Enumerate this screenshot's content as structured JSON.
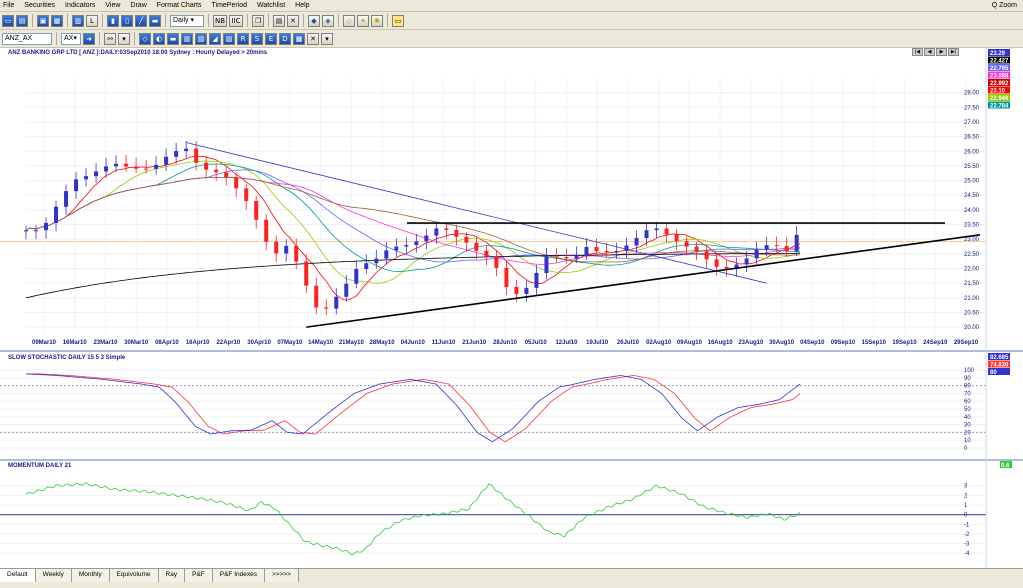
{
  "menu": {
    "items": [
      "File",
      "Securities",
      "Indicators",
      "View",
      "Draw",
      "Format Charts",
      "TimePeriod",
      "Watchlist",
      "Help"
    ],
    "zoom_label": "Q Zoom"
  },
  "toolbar": {
    "period_select": "Daily",
    "nb_label": "NB",
    "iic_label": "IIC"
  },
  "toolbar2": {
    "security_input": "ANZ_AX",
    "search_input": "AX"
  },
  "price_panel": {
    "title": "ANZ BANKING GRP LTD [ ANZ ]:DAILY:03Sep2010 18:00 Sydney : Hourly Delayed > 20mins",
    "y_ticks": [
      "28.00",
      "27.50",
      "27.00",
      "26.50",
      "26.00",
      "25.50",
      "25.00",
      "24.50",
      "24.00",
      "23.50",
      "23.00",
      "22.50",
      "22.00",
      "21.50",
      "21.00",
      "20.50",
      "20.00"
    ],
    "x_ticks": [
      "09Mar10",
      "16Mar10",
      "23Mar10",
      "30Mar10",
      "08Apr10",
      "16Apr10",
      "22Apr10",
      "30Apr10",
      "07May10",
      "14May10",
      "21May10",
      "28May10",
      "04Jun10",
      "11Jun10",
      "21Jun10",
      "28Jun10",
      "05Jul10",
      "12Jul10",
      "19Jul10",
      "26Jul10",
      "02Aug10",
      "09Aug10",
      "16Aug10",
      "23Aug10",
      "30Aug10",
      "04Sep10",
      "09Sep10",
      "15Sep10",
      "19Sep10",
      "24Sep10",
      "29Sep10"
    ],
    "value_labels": [
      {
        "text": "23.29",
        "color": "#3333cc"
      },
      {
        "text": "22.427",
        "color": "#000000"
      },
      {
        "text": "22.795",
        "color": "#6666ff"
      },
      {
        "text": "23.088",
        "color": "#ff33cc"
      },
      {
        "text": "22.892",
        "color": "#cc0000"
      },
      {
        "text": "23.10",
        "color": "#ff0000"
      },
      {
        "text": "22.946",
        "color": "#99cc00"
      },
      {
        "text": "22.784",
        "color": "#009999"
      }
    ]
  },
  "stoch_panel": {
    "title": "SLOW STOCHASTIC DAILY 15 5 3 Simple",
    "y_ticks": [
      "100",
      "90",
      "80",
      "70",
      "60",
      "50",
      "40",
      "30",
      "20",
      "10",
      "0"
    ],
    "value_labels": [
      {
        "text": "82.685",
        "color": "#3333cc"
      },
      {
        "text": "74.830",
        "color": "#ff3333"
      },
      {
        "text": "80",
        "color": "#3333cc"
      }
    ]
  },
  "momentum_panel": {
    "title": "MOMENTUM DAILY 21",
    "y_ticks": [
      "3",
      "2",
      "1",
      "0",
      "-1",
      "-2",
      "-3",
      "-4"
    ],
    "value_labels": [
      {
        "text": "0.6",
        "color": "#33cc33"
      }
    ]
  },
  "tabs": [
    "Default",
    "Weekly",
    "Monthly",
    "Equivolume",
    "Ray",
    "P&F",
    "P&F Indexes",
    ">>>>>"
  ],
  "colors": {
    "up_candle": "#3333cc",
    "down_candle": "#ff2020",
    "trendline": "#000000",
    "stoch_k": "#3333cc",
    "stoch_d": "#ff3333",
    "momentum": "#33cc33"
  }
}
